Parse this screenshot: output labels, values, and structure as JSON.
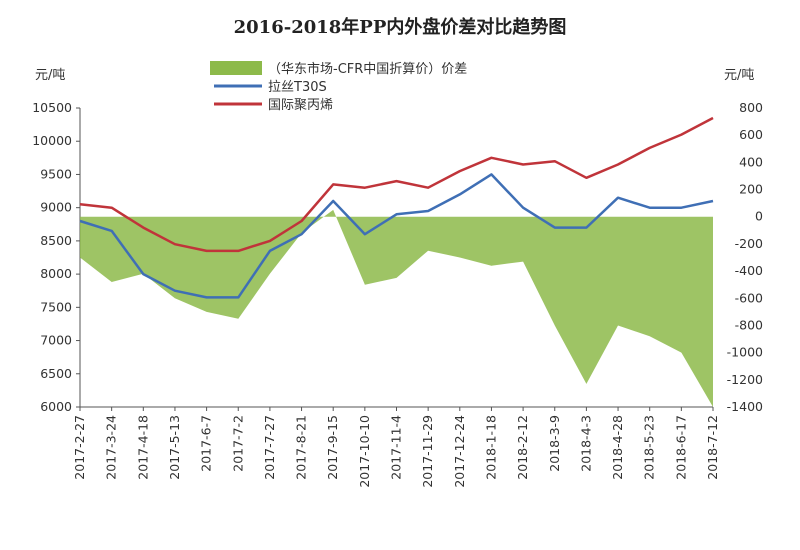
{
  "chart_data": {
    "type": "line",
    "title": "2016-2018年PP内外盘价差对比趋势图",
    "left_unit": "元/吨",
    "right_unit": "元/吨",
    "left_axis": {
      "min": 6000,
      "max": 10500,
      "ticks": [
        6000,
        6500,
        7000,
        7500,
        8000,
        8500,
        9000,
        9500,
        10000,
        10500
      ]
    },
    "right_axis": {
      "min": -1400,
      "max": 800,
      "ticks": [
        -1400,
        -1200,
        -1000,
        -800,
        -600,
        -400,
        -200,
        0,
        200,
        400,
        600,
        800
      ]
    },
    "x_tick_labels": [
      "2017-2-27",
      "2017-3-24",
      "2017-4-18",
      "2017-5-13",
      "2017-6-7",
      "2017-7-2",
      "2017-7-27",
      "2017-8-21",
      "2017-9-15",
      "2017-10-10",
      "2017-11-4",
      "2017-11-29",
      "2017-12-24",
      "2018-1-18",
      "2018-2-12",
      "2018-3-9",
      "2018-4-3",
      "2018-4-28",
      "2018-5-23",
      "2018-6-17",
      "2018-7-12"
    ],
    "x": [
      "2017-2-27",
      "2017-3-24",
      "2017-4-18",
      "2017-5-13",
      "2017-6-7",
      "2017-7-2",
      "2017-7-27",
      "2017-8-21",
      "2017-9-15",
      "2017-10-10",
      "2017-11-4",
      "2017-11-29",
      "2017-12-24",
      "2018-1-18",
      "2018-2-12",
      "2018-3-9",
      "2018-4-3",
      "2018-4-28",
      "2018-5-23",
      "2018-6-17",
      "2018-7-12"
    ],
    "legend": [
      {
        "label": "（华东市场-CFR中国折算价）价差",
        "color": "#8dba4a",
        "kind": "area"
      },
      {
        "label": "拉丝T30S",
        "color": "#3f6fb5",
        "kind": "line"
      },
      {
        "label": "国际聚丙烯",
        "color": "#c0343a",
        "kind": "line"
      }
    ],
    "series": [
      {
        "name": "（华东市场-CFR中国折算价）价差",
        "axis": "right",
        "type": "area",
        "color": "#8dba4a",
        "values": [
          -300,
          -480,
          -420,
          -600,
          -700,
          -750,
          -420,
          -120,
          50,
          -500,
          -450,
          -250,
          -300,
          -360,
          -330,
          -800,
          -1230,
          -800,
          -880,
          -1000,
          -1400
        ]
      },
      {
        "name": "拉丝T30S",
        "axis": "left",
        "type": "line",
        "color": "#3f6fb5",
        "values": [
          8800,
          8650,
          8000,
          7750,
          7650,
          7650,
          8350,
          8600,
          9100,
          8600,
          8900,
          8950,
          9200,
          9500,
          9000,
          8700,
          8700,
          9150,
          9000,
          9000,
          9100
        ]
      },
      {
        "name": "国际聚丙烯",
        "axis": "left",
        "type": "line",
        "color": "#c0343a",
        "values": [
          9050,
          9000,
          8700,
          8450,
          8350,
          8350,
          8500,
          8800,
          9350,
          9300,
          9400,
          9300,
          9550,
          9750,
          9650,
          9700,
          9450,
          9650,
          9900,
          10100,
          10350
        ]
      }
    ]
  }
}
